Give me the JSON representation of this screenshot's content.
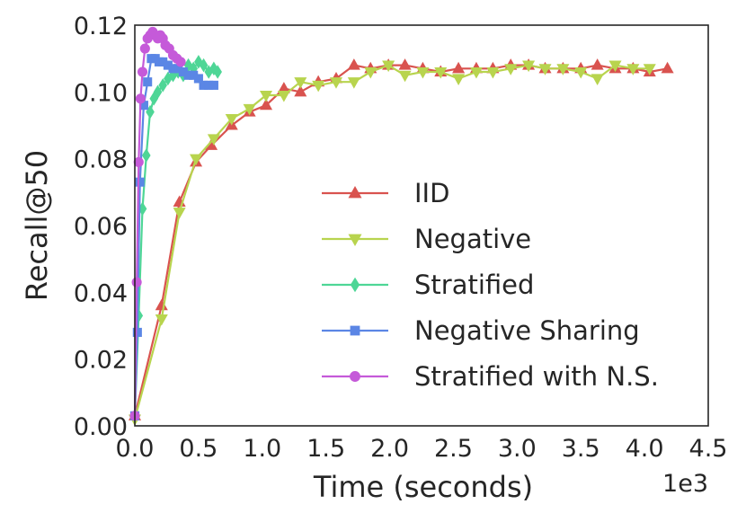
{
  "chart_data": {
    "type": "line",
    "title": "",
    "xlabel": "Time (seconds)",
    "ylabel": "Recall@50",
    "x_scale_label": "1e3",
    "xlim": [
      0,
      4.5
    ],
    "ylim": [
      0,
      0.12
    ],
    "x_ticks": [
      "0.0",
      "0.5",
      "1.0",
      "1.5",
      "2.0",
      "2.5",
      "3.0",
      "3.5",
      "4.0",
      "4.5"
    ],
    "y_ticks": [
      "0.00",
      "0.02",
      "0.04",
      "0.06",
      "0.08",
      "0.10",
      "0.12"
    ],
    "grid": false,
    "legend_position": "center-right",
    "series": [
      {
        "name": "IID",
        "color": "#d9534f",
        "marker": "triangle-up",
        "x": [
          0.0,
          0.21,
          0.35,
          0.48,
          0.6,
          0.76,
          0.9,
          1.03,
          1.17,
          1.3,
          1.44,
          1.58,
          1.72,
          1.85,
          1.99,
          2.12,
          2.26,
          2.4,
          2.54,
          2.68,
          2.81,
          2.95,
          3.09,
          3.22,
          3.36,
          3.5,
          3.63,
          3.77,
          3.91,
          4.04,
          4.18
        ],
        "values": [
          0.003,
          0.036,
          0.067,
          0.079,
          0.084,
          0.09,
          0.094,
          0.096,
          0.101,
          0.1,
          0.103,
          0.104,
          0.108,
          0.107,
          0.108,
          0.108,
          0.107,
          0.106,
          0.107,
          0.107,
          0.107,
          0.108,
          0.108,
          0.107,
          0.107,
          0.107,
          0.108,
          0.107,
          0.107,
          0.106,
          0.107
        ]
      },
      {
        "name": "Negative",
        "color": "#b8d44e",
        "marker": "triangle-down",
        "x": [
          0.0,
          0.21,
          0.35,
          0.48,
          0.62,
          0.76,
          0.9,
          1.03,
          1.17,
          1.3,
          1.44,
          1.58,
          1.72,
          1.85,
          1.99,
          2.12,
          2.26,
          2.4,
          2.54,
          2.68,
          2.81,
          2.95,
          3.09,
          3.22,
          3.36,
          3.5,
          3.63,
          3.77,
          3.91,
          4.04
        ],
        "values": [
          0.002,
          0.032,
          0.064,
          0.08,
          0.086,
          0.092,
          0.095,
          0.099,
          0.099,
          0.103,
          0.102,
          0.103,
          0.103,
          0.106,
          0.108,
          0.105,
          0.106,
          0.106,
          0.104,
          0.106,
          0.106,
          0.107,
          0.108,
          0.107,
          0.107,
          0.106,
          0.104,
          0.108,
          0.107,
          0.107
        ]
      },
      {
        "name": "Stratified",
        "color": "#4ed696",
        "marker": "diamond",
        "x": [
          0.0,
          0.03,
          0.06,
          0.09,
          0.12,
          0.15,
          0.18,
          0.22,
          0.26,
          0.3,
          0.34,
          0.38,
          0.42,
          0.46,
          0.5,
          0.54,
          0.58,
          0.62,
          0.65
        ],
        "values": [
          0.003,
          0.033,
          0.065,
          0.081,
          0.094,
          0.098,
          0.1,
          0.102,
          0.104,
          0.105,
          0.106,
          0.105,
          0.108,
          0.107,
          0.109,
          0.108,
          0.106,
          0.107,
          0.106
        ]
      },
      {
        "name": "Negative Sharing",
        "color": "#5b86e5",
        "marker": "square",
        "x": [
          0.0,
          0.02,
          0.04,
          0.07,
          0.1,
          0.13,
          0.16,
          0.19,
          0.22,
          0.26,
          0.3,
          0.34,
          0.38,
          0.42,
          0.46,
          0.5,
          0.54,
          0.58,
          0.62
        ],
        "values": [
          0.003,
          0.028,
          0.073,
          0.096,
          0.103,
          0.11,
          0.11,
          0.109,
          0.109,
          0.108,
          0.107,
          0.107,
          0.106,
          0.105,
          0.105,
          0.104,
          0.102,
          0.102,
          0.102
        ]
      },
      {
        "name": "Stratified with N.S.",
        "color": "#c55ad9",
        "marker": "circle",
        "x": [
          0.0,
          0.015,
          0.03,
          0.045,
          0.06,
          0.08,
          0.1,
          0.12,
          0.14,
          0.16,
          0.18,
          0.2,
          0.22,
          0.24,
          0.27,
          0.3,
          0.33,
          0.36
        ],
        "values": [
          0.003,
          0.043,
          0.079,
          0.098,
          0.106,
          0.113,
          0.116,
          0.117,
          0.118,
          0.117,
          0.116,
          0.117,
          0.116,
          0.114,
          0.113,
          0.111,
          0.11,
          0.109
        ]
      }
    ]
  }
}
